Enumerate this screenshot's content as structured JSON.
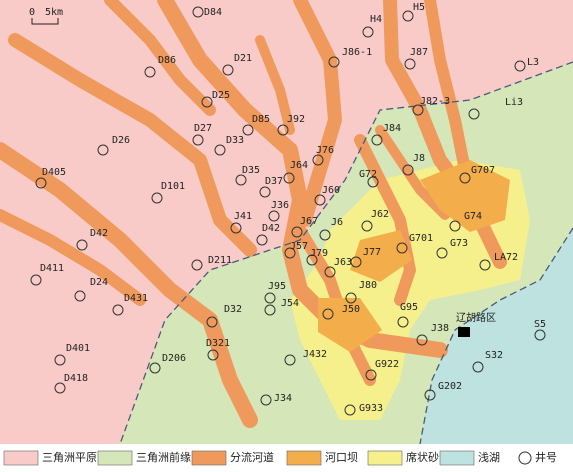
{
  "scale": {
    "start": "0",
    "end": "5km"
  },
  "wells": [
    "D84",
    "H4",
    "H5",
    "J86-1",
    "J87",
    "L3",
    "D86",
    "D21",
    "D25",
    "J82-3",
    "Li3",
    "D85",
    "J92",
    "D27",
    "D33",
    "J84",
    "D26",
    "J76",
    "J8",
    "J64",
    "D35",
    "G72",
    "G707",
    "D405",
    "D37",
    "D101",
    "J60",
    "J36",
    "G74",
    "J41",
    "J67",
    "J6",
    "J62",
    "D42",
    "G701",
    "G73",
    "D42",
    "J57",
    "J79",
    "J77",
    "J63",
    "LA72",
    "D211",
    "D411",
    "D24",
    "J95",
    "J80",
    "D431",
    "J54",
    "G95",
    "J50",
    "D32",
    "S5",
    "J38",
    "D321",
    "D401",
    "D206",
    "J432",
    "S32",
    "G922",
    "D418",
    "G202",
    "J34",
    "G933"
  ],
  "area_label": "辽胡路区",
  "legend": [
    "三角洲平原",
    "三角洲前缘",
    "分流河道",
    "河口坝",
    "席状砂",
    "浅湖",
    "井号"
  ]
}
